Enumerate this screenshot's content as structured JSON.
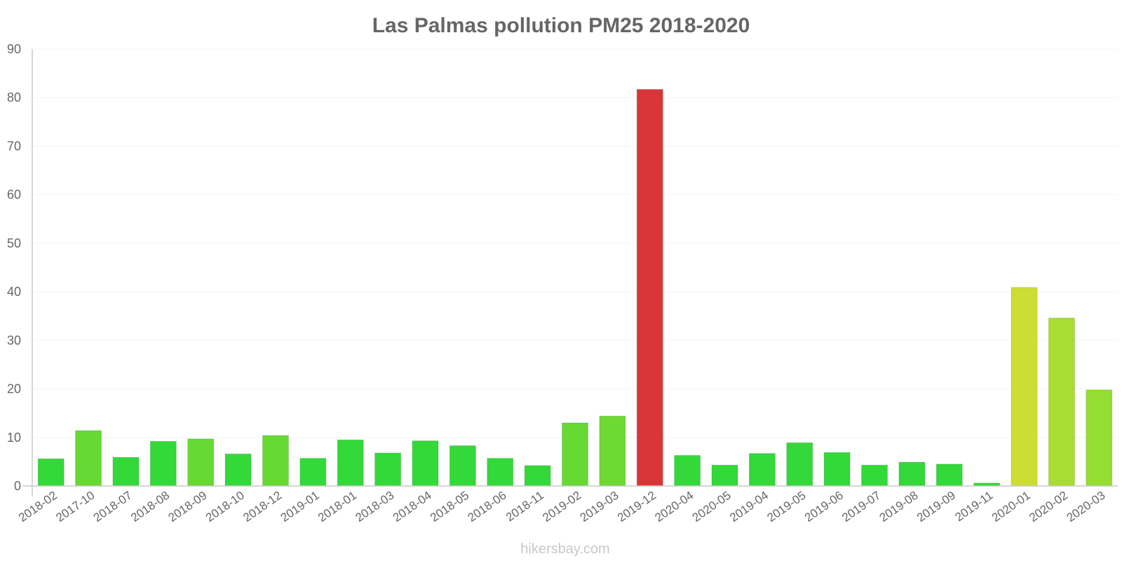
{
  "chart_data": {
    "type": "bar",
    "title": "Las Palmas pollution PM25 2018-2020",
    "xlabel": "",
    "ylabel": "",
    "ylim": [
      0,
      90
    ],
    "yticks": [
      0,
      10,
      20,
      30,
      40,
      50,
      60,
      70,
      80,
      90
    ],
    "grid": true,
    "legend": "none",
    "categories": [
      "2018-02",
      "2017-10",
      "2018-07",
      "2018-08",
      "2018-09",
      "2018-10",
      "2018-12",
      "2019-01",
      "2018-01",
      "2018-03",
      "2018-04",
      "2018-05",
      "2018-06",
      "2018-11",
      "2019-02",
      "2019-03",
      "2019-12",
      "2020-04",
      "2020-05",
      "2019-04",
      "2019-05",
      "2019-06",
      "2019-07",
      "2019-08",
      "2019-09",
      "2019-11",
      "2020-01",
      "2020-02",
      "2020-03"
    ],
    "values": [
      5.6,
      11.4,
      5.9,
      9.2,
      9.7,
      6.6,
      10.4,
      5.7,
      9.5,
      6.8,
      9.3,
      8.3,
      5.7,
      4.2,
      13.0,
      14.4,
      81.7,
      6.3,
      4.3,
      6.7,
      8.9,
      6.9,
      4.3,
      4.9,
      4.5,
      0.6,
      40.9,
      34.6,
      19.8
    ],
    "colors": [
      "#33d938",
      "#66d933",
      "#33d938",
      "#33d938",
      "#66d933",
      "#33d938",
      "#66d933",
      "#33d938",
      "#33d938",
      "#33d938",
      "#33d938",
      "#33d938",
      "#33d938",
      "#33d938",
      "#66d933",
      "#6ed933",
      "#d93538",
      "#33d938",
      "#33d938",
      "#33d938",
      "#33d938",
      "#33d938",
      "#33d938",
      "#33d938",
      "#33d938",
      "#33d938",
      "#ccdd33",
      "#a8dd33",
      "#95dd33"
    ]
  },
  "watermark": "hikersbay.com"
}
